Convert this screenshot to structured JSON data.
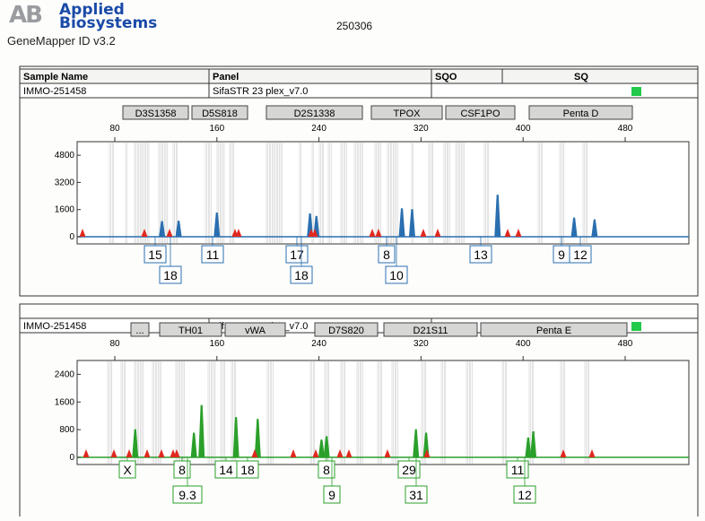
{
  "header": {
    "logo_mark": "AB",
    "brand_line1": "Applied",
    "brand_line2": "Biosystems",
    "app_name": "GeneMapper ID v3.2",
    "run_id": "250306"
  },
  "table_header": {
    "col_sample": "Sample Name",
    "col_panel": "Panel",
    "col_sqo": "SQO",
    "col_sq": "SQ"
  },
  "colors": {
    "blue_trace": "#2a6fb0",
    "green_trace": "#2aa02a",
    "marker_red": "#e0281e",
    "status_green": "#22c94a",
    "bin_fill": "#cfcfcf"
  },
  "panels": [
    {
      "sample": "IMMO-251458",
      "panel": "SifaSTR 23 plex_v7.0",
      "status": "green",
      "loci": [
        "D3S1358",
        "D5S818",
        "D2S1338",
        "TPOX",
        "CSF1PO",
        "Penta D"
      ],
      "x_ticks": [
        80,
        160,
        240,
        320,
        400,
        480
      ],
      "y_ticks": [
        0,
        1600,
        3200,
        4800
      ],
      "y_max": 5600,
      "trace_color": "blue",
      "peaks": [
        [
          117,
          900
        ],
        [
          130,
          920
        ],
        [
          160,
          1400
        ],
        [
          233,
          1350
        ],
        [
          238,
          1200
        ],
        [
          305,
          1650
        ],
        [
          313,
          1600
        ],
        [
          380,
          2450
        ],
        [
          440,
          1100
        ],
        [
          456,
          1000
        ]
      ],
      "markers": [
        92,
        161,
        189,
        262,
        266,
        347,
        351,
        415,
        422,
        472,
        488,
        566,
        578
      ],
      "alleles_row1": [
        "15",
        "11",
        "17",
        "8",
        "13",
        "9",
        "12"
      ],
      "alleles_row2": [
        "18",
        "18",
        "10"
      ]
    },
    {
      "sample": "IMMO-251458",
      "panel": "SifaSTR 23 plex_v7.0",
      "status": "green",
      "loci": [
        "...",
        "TH01",
        "vWA",
        "D7S820",
        "D21S11",
        "Penta E"
      ],
      "x_ticks": [
        80,
        160,
        240,
        320,
        400,
        480
      ],
      "y_ticks": [
        0,
        800,
        1600,
        2400
      ],
      "y_max": 2800,
      "trace_color": "green",
      "peaks": [
        [
          96,
          800
        ],
        [
          142,
          700
        ],
        [
          148,
          1500
        ],
        [
          175,
          1150
        ],
        [
          192,
          1100
        ],
        [
          242,
          500
        ],
        [
          246,
          600
        ],
        [
          316,
          800
        ],
        [
          324,
          700
        ],
        [
          404,
          560
        ],
        [
          408,
          740
        ]
      ],
      "markers": [
        96,
        127,
        144,
        164,
        180,
        193,
        197,
        284,
        327,
        352,
        379,
        389,
        432,
        476,
        628,
        660
      ],
      "alleles_row1": [
        "X",
        "8",
        "14",
        "18",
        "8",
        "29",
        "11"
      ],
      "alleles_row2": [
        "9.3",
        "9",
        "31",
        "12"
      ]
    }
  ]
}
